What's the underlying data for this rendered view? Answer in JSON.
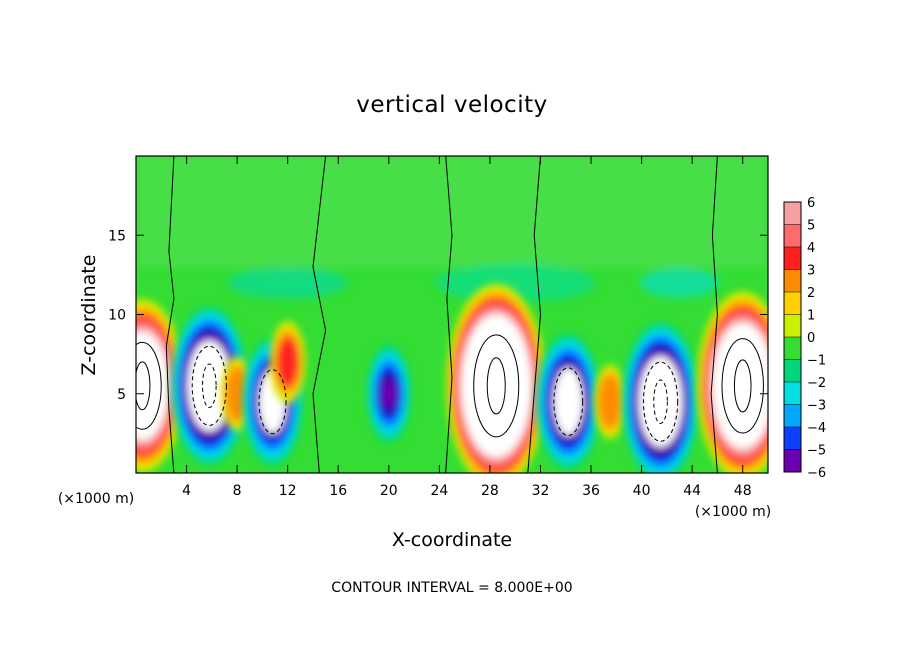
{
  "chart_data": {
    "type": "heatmap",
    "title": "vertical velocity",
    "xlabel": "X-coordinate",
    "ylabel": "Z-coordinate",
    "x_units": "(×1000 m)",
    "y_units": "(×1000 m)",
    "xlim": [
      0,
      50
    ],
    "ylim": [
      0,
      20
    ],
    "x_ticks": [
      "4",
      "8",
      "12",
      "16",
      "20",
      "24",
      "28",
      "32",
      "36",
      "40",
      "44",
      "48"
    ],
    "y_ticks": [
      "5",
      "10",
      "15"
    ],
    "colorbar": {
      "ticks": [
        "6",
        "5",
        "4",
        "3",
        "2",
        "1",
        "0",
        "−1",
        "−2",
        "−3",
        "−4",
        "−5",
        "−6"
      ],
      "range": [
        -6,
        6
      ]
    },
    "contour_interval_text": "CONTOUR INTERVAL = 8.000E+00",
    "features": [
      {
        "sign": "positive",
        "x": 0.5,
        "z": 5.5,
        "peak": 16
      },
      {
        "sign": "negative",
        "x": 5.8,
        "z": 5.5,
        "peak": -14
      },
      {
        "sign": "positive",
        "x": 8.0,
        "z": 5.0,
        "peak": 3
      },
      {
        "sign": "negative",
        "x": 10.8,
        "z": 4.5,
        "peak": -10
      },
      {
        "sign": "positive",
        "x": 12.0,
        "z": 7.0,
        "peak": 4
      },
      {
        "sign": "negative",
        "x": 20.0,
        "z": 5.0,
        "peak": -6
      },
      {
        "sign": "positive",
        "x": 28.5,
        "z": 5.5,
        "peak": 20
      },
      {
        "sign": "negative",
        "x": 34.2,
        "z": 4.5,
        "peak": -11
      },
      {
        "sign": "positive",
        "x": 37.5,
        "z": 4.5,
        "peak": 3
      },
      {
        "sign": "negative",
        "x": 41.5,
        "z": 4.5,
        "peak": -14
      },
      {
        "sign": "positive",
        "x": 48.0,
        "z": 5.5,
        "peak": 18
      }
    ]
  }
}
